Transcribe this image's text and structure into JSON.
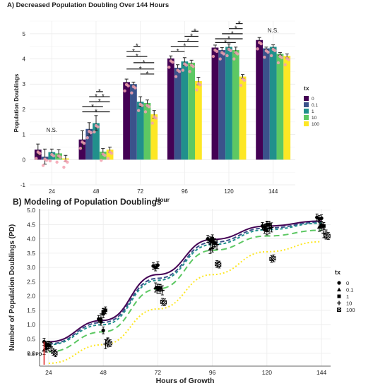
{
  "chart_data": [
    {
      "type": "bar",
      "title": "A) Decreased Population Doubling Over 144 Hours",
      "xlabel": "Hour",
      "ylabel": "Population Doublings",
      "categories": [
        "24",
        "48",
        "72",
        "96",
        "120",
        "144"
      ],
      "ylim": [
        -1,
        5.5
      ],
      "yticks": [
        "-1",
        "0",
        "1",
        "2",
        "3",
        "4",
        "5"
      ],
      "grid": true,
      "legend_title": "tx",
      "legend_position": "right",
      "series": [
        {
          "name": "0",
          "color": "#440154",
          "values": [
            0.4,
            0.8,
            3.08,
            4.02,
            4.45,
            4.75
          ],
          "err": [
            0.22,
            0.35,
            0.12,
            0.1,
            0.1,
            0.1
          ]
        },
        {
          "name": "0.1",
          "color": "#3b528b",
          "values": [
            0.12,
            1.22,
            3.0,
            3.65,
            4.35,
            4.42
          ],
          "err": [
            0.3,
            0.25,
            0.08,
            0.12,
            0.1,
            0.05
          ]
        },
        {
          "name": "1",
          "color": "#21908c",
          "values": [
            0.3,
            1.45,
            2.3,
            3.9,
            4.48,
            4.48
          ],
          "err": [
            0.12,
            0.3,
            0.2,
            0.15,
            0.12,
            0.08
          ]
        },
        {
          "name": "10",
          "color": "#5dc863",
          "values": [
            0.25,
            0.32,
            2.25,
            3.85,
            4.35,
            4.2
          ],
          "err": [
            0.15,
            0.12,
            0.12,
            0.1,
            0.12,
            0.05
          ]
        },
        {
          "name": "100",
          "color": "#fde725",
          "values": [
            0.05,
            0.4,
            1.8,
            3.12,
            3.3,
            4.12
          ],
          "err": [
            0.12,
            0.1,
            0.15,
            0.15,
            0.08,
            0.08
          ]
        }
      ],
      "annotations": [
        {
          "text": "N.S.",
          "category": "24"
        },
        {
          "text": "N.S.",
          "category": "144"
        },
        {
          "text": "*",
          "note": "significance brackets over 48, 72, 96, 120"
        }
      ]
    },
    {
      "type": "line",
      "title": "B) Modeling of Population Doublings",
      "xlabel": "Hours of Growth",
      "ylabel": "Number of Population Doublings (PD)",
      "x_ticks": [
        "24",
        "48",
        "72",
        "96",
        "120",
        "144"
      ],
      "y_ticks": [
        "0.0",
        "0.5",
        "1.0",
        "1.5",
        "2.0",
        "2.5",
        "3.0",
        "3.5",
        "4.0",
        "4.5",
        "5.0"
      ],
      "xlim": [
        20,
        148
      ],
      "ylim": [
        -0.45,
        5.05
      ],
      "grid": true,
      "legend_title": "tx",
      "legend_position": "right",
      "annotation": "0.8 PD",
      "model_x": [
        24,
        48,
        72,
        96,
        120,
        144
      ],
      "series": [
        {
          "name": "0",
          "color": "#440154",
          "dash": "solid",
          "model": [
            0.4,
            1.15,
            2.75,
            3.98,
            4.45,
            4.62
          ],
          "points": [
            [
              22,
              0.4
            ],
            [
              23,
              0.25
            ],
            [
              24,
              0.3
            ],
            [
              46,
              1.2
            ],
            [
              47,
              1.1
            ],
            [
              48,
              0.8
            ],
            [
              70,
              3.05
            ],
            [
              71,
              3.0
            ],
            [
              72,
              3.08
            ],
            [
              94,
              4.0
            ],
            [
              95,
              3.95
            ],
            [
              96,
              4.02
            ],
            [
              118,
              4.45
            ],
            [
              119,
              4.4
            ],
            [
              120,
              4.5
            ],
            [
              142,
              4.75
            ],
            [
              143,
              4.7
            ],
            [
              144,
              4.72
            ]
          ]
        },
        {
          "name": "0.1",
          "color": "#3b528b",
          "dash": "6,3",
          "model": [
            0.33,
            1.08,
            2.62,
            3.88,
            4.38,
            4.58
          ],
          "points": [
            [
              22,
              0.12
            ],
            [
              23,
              0.2
            ],
            [
              47,
              1.22
            ],
            [
              48,
              1.4
            ],
            [
              71,
              2.3
            ],
            [
              72,
              2.25
            ],
            [
              95,
              3.65
            ],
            [
              96,
              3.7
            ],
            [
              119,
              4.35
            ],
            [
              120,
              4.3
            ],
            [
              143,
              4.42
            ],
            [
              144,
              4.45
            ]
          ]
        },
        {
          "name": "1",
          "color": "#21908c",
          "dash": "4,3",
          "model": [
            0.3,
            1.0,
            2.55,
            3.8,
            4.32,
            4.55
          ],
          "points": [
            [
              23,
              0.3
            ],
            [
              24,
              0.28
            ],
            [
              48,
              1.45
            ],
            [
              49,
              1.5
            ],
            [
              72,
              2.3
            ],
            [
              73,
              2.28
            ],
            [
              96,
              3.9
            ],
            [
              97,
              3.85
            ],
            [
              120,
              4.48
            ],
            [
              121,
              4.5
            ],
            [
              144,
              4.48
            ],
            [
              145,
              4.45
            ]
          ]
        },
        {
          "name": "10",
          "color": "#5dc863",
          "dash": "8,5",
          "model": [
            0.05,
            0.75,
            2.25,
            3.6,
            4.1,
            4.3
          ],
          "points": [
            [
              24,
              0.25
            ],
            [
              25,
              0.22
            ],
            [
              49,
              0.32
            ],
            [
              50,
              0.38
            ],
            [
              73,
              2.25
            ],
            [
              74,
              2.2
            ],
            [
              97,
              3.85
            ],
            [
              98,
              3.8
            ],
            [
              121,
              4.35
            ],
            [
              122,
              4.4
            ],
            [
              145,
              4.2
            ],
            [
              146,
              4.15
            ]
          ]
        },
        {
          "name": "100",
          "color": "#fde725",
          "dash": "2,3",
          "model": [
            -0.35,
            0.3,
            1.55,
            2.75,
            3.55,
            3.9
          ],
          "points": [
            [
              26,
              0.05
            ],
            [
              27,
              0.0
            ],
            [
              50,
              0.4
            ],
            [
              51,
              0.35
            ],
            [
              74,
              1.8
            ],
            [
              75,
              1.78
            ],
            [
              98,
              3.12
            ],
            [
              99,
              3.1
            ],
            [
              122,
              3.3
            ],
            [
              123,
              3.32
            ],
            [
              146,
              4.12
            ],
            [
              147,
              4.1
            ]
          ]
        }
      ]
    }
  ]
}
